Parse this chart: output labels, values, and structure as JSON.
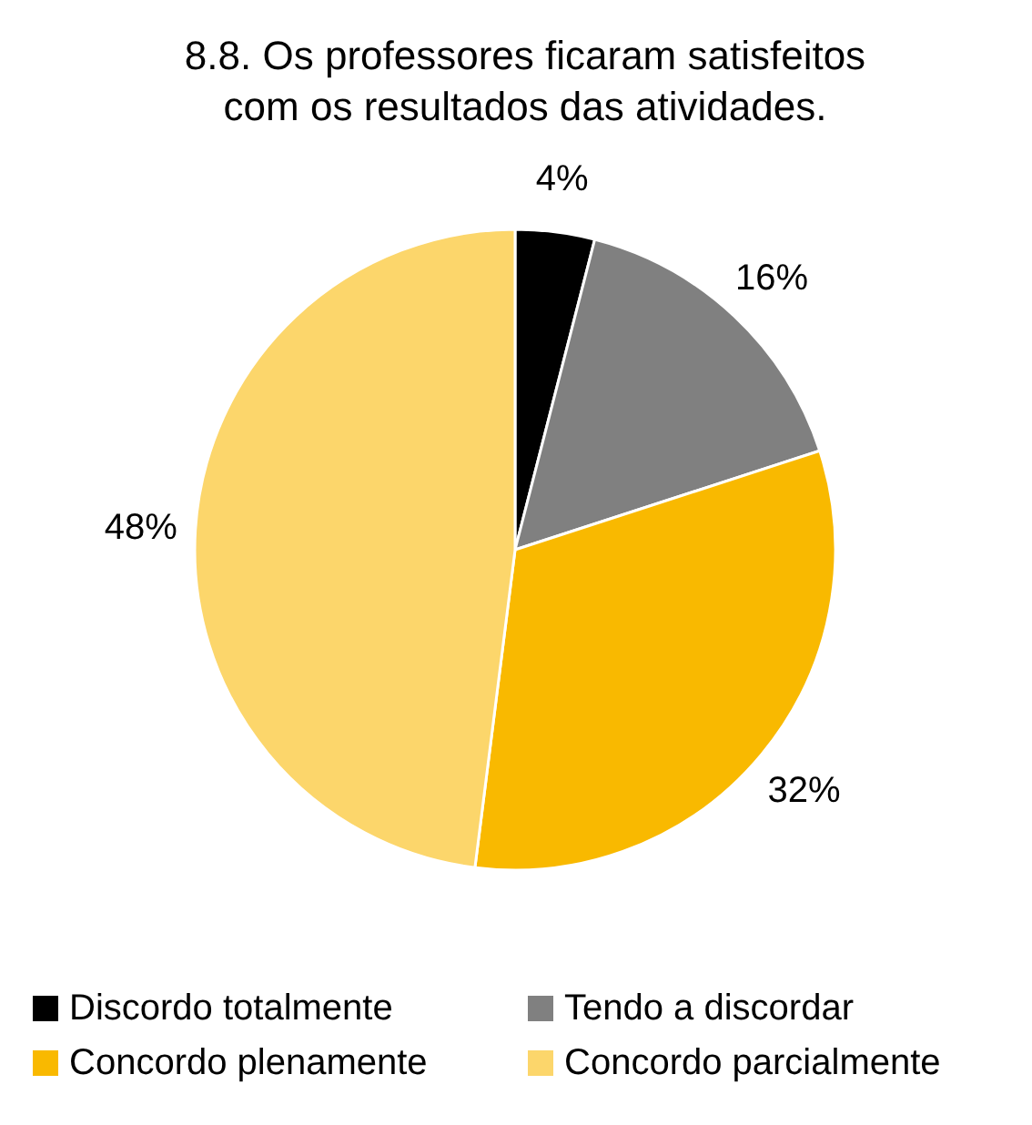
{
  "chart_data": {
    "type": "pie",
    "title": "8.8. Os professores ficaram satisfeitos com os resultados das atividades.",
    "categories": [
      "Discordo totalmente",
      "Tendo a discordar",
      "Concordo plenamente",
      "Concordo parcialmente"
    ],
    "values": [
      4,
      16,
      32,
      48
    ],
    "colors": [
      "#000000",
      "#808080",
      "#f9b900",
      "#fcd66b"
    ],
    "value_labels": [
      "4%",
      "16%",
      "32%",
      "48%"
    ],
    "legend": "bottom"
  }
}
